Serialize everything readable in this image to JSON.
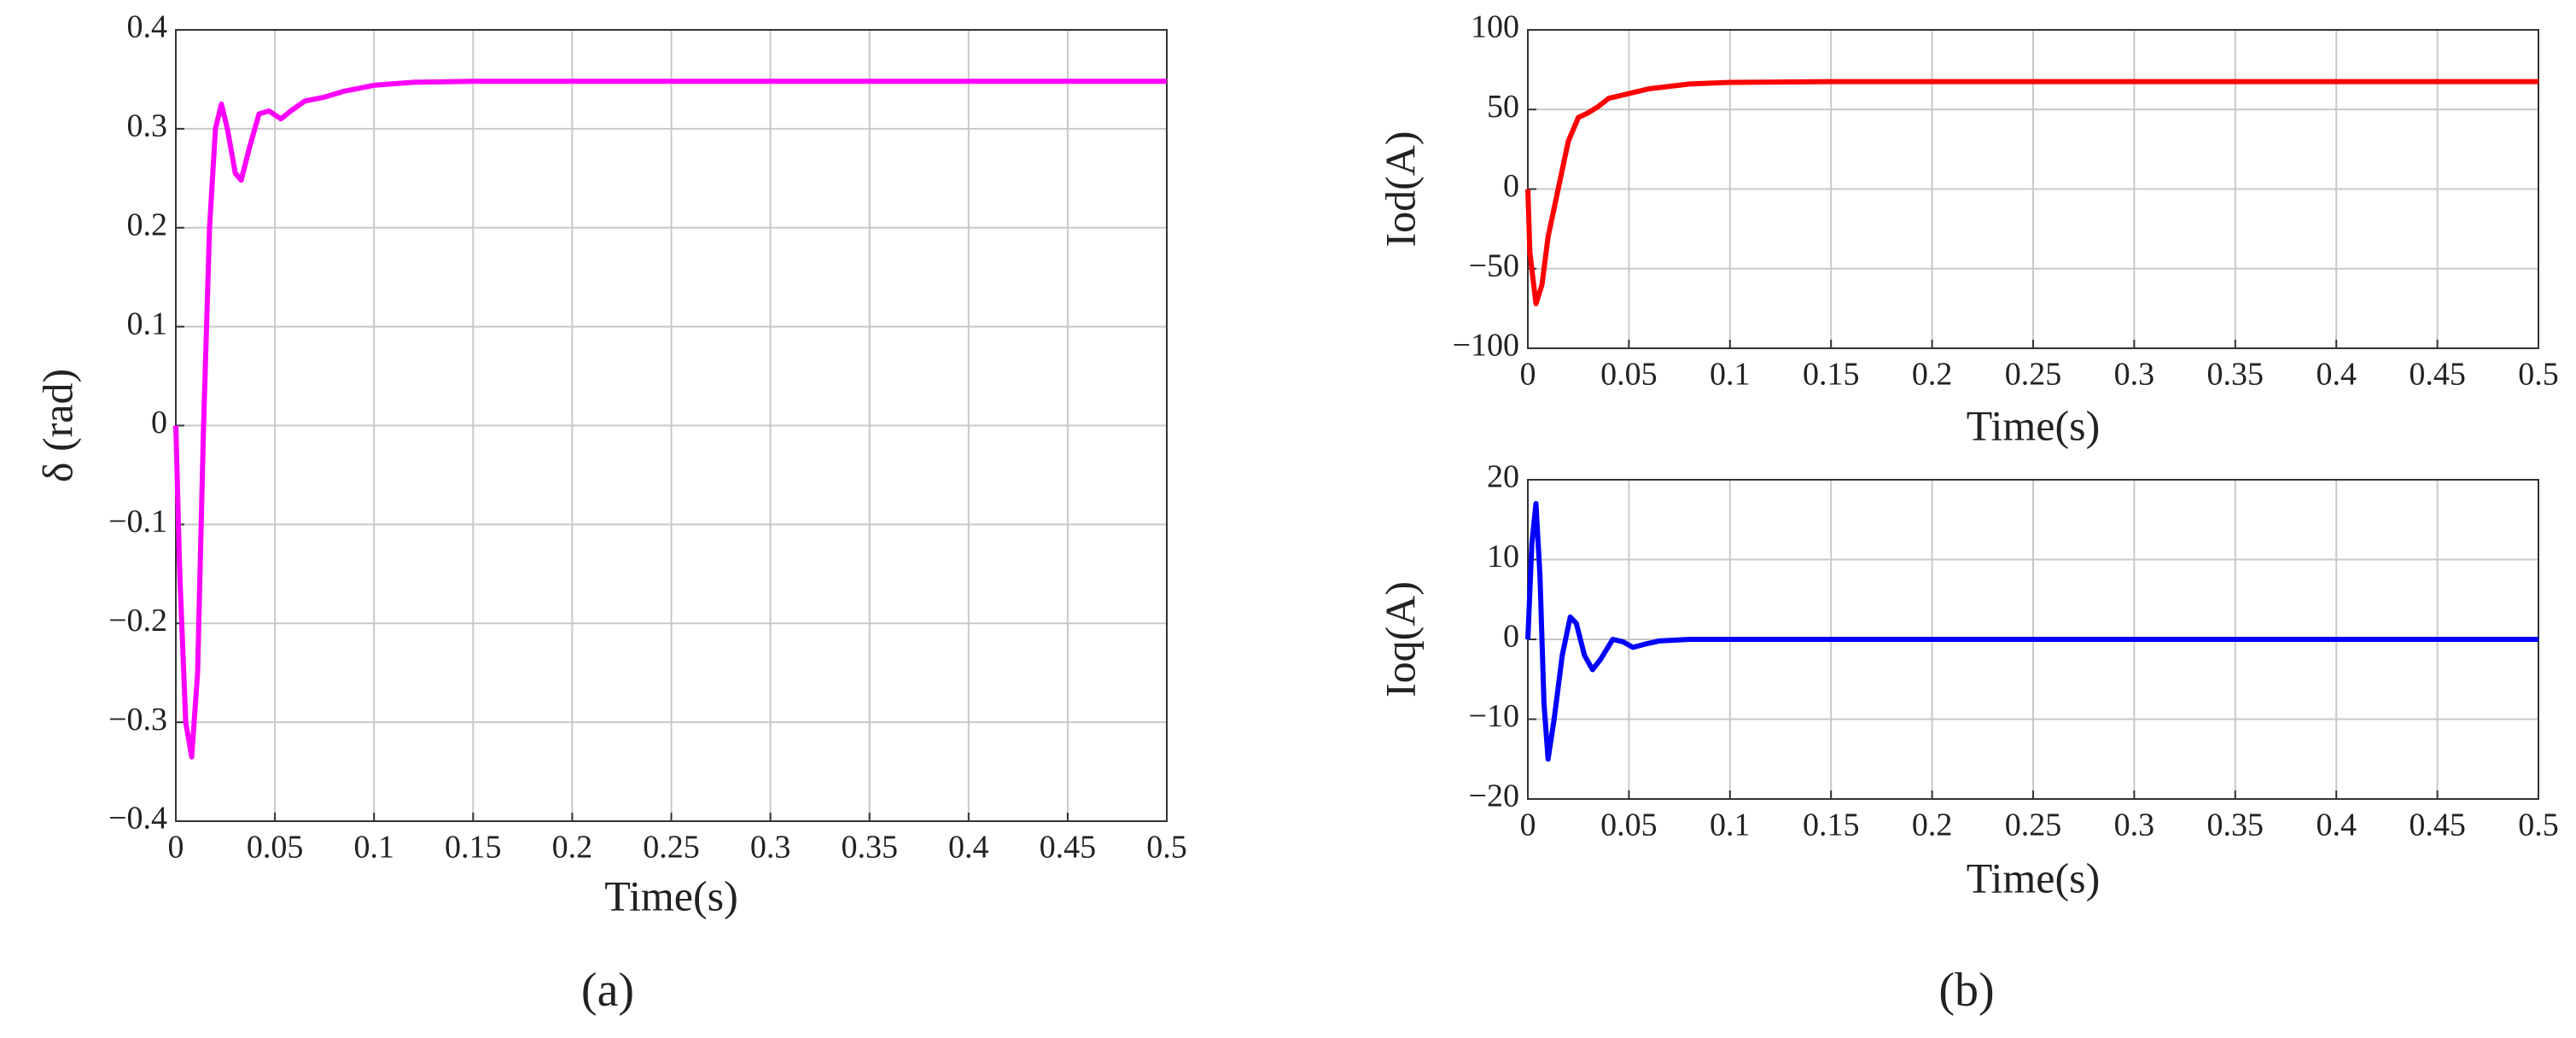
{
  "chart_data": [
    {
      "type": "line",
      "xlabel": "Time(s)",
      "ylabel": "δ (rad)",
      "color": "#ff00ff",
      "grid": true,
      "x": [
        0,
        0.002,
        0.005,
        0.008,
        0.011,
        0.014,
        0.017,
        0.02,
        0.023,
        0.026,
        0.03,
        0.033,
        0.037,
        0.042,
        0.047,
        0.053,
        0.058,
        0.065,
        0.075,
        0.085,
        0.1,
        0.12,
        0.15,
        0.2,
        0.3,
        0.4,
        0.5
      ],
      "values": [
        0,
        -0.15,
        -0.3,
        -0.335,
        -0.25,
        0,
        0.2,
        0.3,
        0.325,
        0.3,
        0.255,
        0.248,
        0.28,
        0.315,
        0.318,
        0.31,
        0.318,
        0.328,
        0.332,
        0.338,
        0.344,
        0.347,
        0.348,
        0.348,
        0.348,
        0.348,
        0.348
      ],
      "xlim": [
        0,
        0.5
      ],
      "xticks": [
        0,
        0.05,
        0.1,
        0.15,
        0.2,
        0.25,
        0.3,
        0.35,
        0.4,
        0.45,
        0.5
      ],
      "ylim": [
        -0.4,
        0.4
      ],
      "yticks": [
        {
          "value": -0.4,
          "label": "−0.4"
        },
        {
          "value": -0.3,
          "label": "−0.3"
        },
        {
          "value": -0.2,
          "label": "−0.2"
        },
        {
          "value": -0.1,
          "label": "−0.1"
        },
        0,
        0.1,
        0.2,
        0.3,
        0.4
      ]
    },
    {
      "type": "line",
      "xlabel": "Time(s)",
      "ylabel": "Iod(A)",
      "color": "#ff0000",
      "grid": true,
      "x": [
        0,
        0.001,
        0.004,
        0.007,
        0.01,
        0.015,
        0.02,
        0.025,
        0.03,
        0.035,
        0.04,
        0.05,
        0.06,
        0.08,
        0.1,
        0.15,
        0.5
      ],
      "values": [
        0,
        -40,
        -72,
        -60,
        -30,
        0,
        30,
        45,
        48,
        52,
        57,
        60,
        63,
        66,
        67,
        67.5,
        67.5
      ],
      "xlim": [
        0,
        0.5
      ],
      "xticks": [
        0,
        0.05,
        0.1,
        0.15,
        0.2,
        0.25,
        0.3,
        0.35,
        0.4,
        0.45,
        0.5
      ],
      "ylim": [
        -100,
        100
      ],
      "yticks": [
        {
          "value": -100,
          "label": "−100"
        },
        {
          "value": -50,
          "label": "−50"
        },
        0,
        50,
        100
      ]
    },
    {
      "type": "line",
      "xlabel": "Time(s)",
      "ylabel": "Ioq(A)",
      "color": "#0000ff",
      "grid": true,
      "x": [
        0,
        0.002,
        0.004,
        0.006,
        0.008,
        0.01,
        0.013,
        0.017,
        0.021,
        0.024,
        0.028,
        0.032,
        0.036,
        0.042,
        0.047,
        0.052,
        0.058,
        0.065,
        0.08,
        0.5
      ],
      "values": [
        0,
        12,
        17,
        8,
        -8,
        -15,
        -10,
        -2,
        2.8,
        2,
        -2,
        -3.8,
        -2.5,
        0,
        -0.3,
        -1,
        -0.6,
        -0.2,
        0,
        0
      ],
      "xlim": [
        0,
        0.5
      ],
      "xticks": [
        0,
        0.05,
        0.1,
        0.15,
        0.2,
        0.25,
        0.3,
        0.35,
        0.4,
        0.45,
        0.5
      ],
      "ylim": [
        -20,
        20
      ],
      "yticks": [
        {
          "value": -20,
          "label": "−20"
        },
        {
          "value": -10,
          "label": "−10"
        },
        0,
        10,
        20
      ]
    }
  ],
  "captions": [
    "(a)",
    "(b)"
  ]
}
